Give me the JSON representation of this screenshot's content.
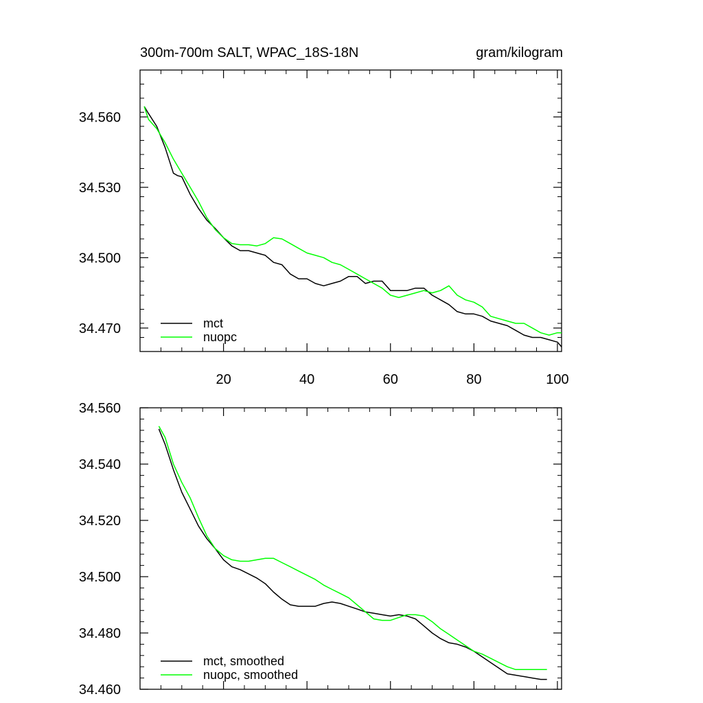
{
  "chart_data": [
    {
      "type": "line",
      "title": "300m-700m SALT, WPAC_18S-18N",
      "units": "gram/kilogram",
      "xlim": [
        0,
        101
      ],
      "ylim": [
        34.46,
        34.58
      ],
      "x_ticks": [
        20,
        40,
        60,
        80,
        100
      ],
      "y_ticks": [
        34.47,
        34.5,
        34.53,
        34.56
      ],
      "y_tick_labels": [
        "34.470",
        "34.500",
        "34.530",
        "34.560"
      ],
      "x_tick_labels": [
        "20",
        "40",
        "60",
        "80",
        "100"
      ],
      "legend": [
        "mct",
        "nuopc"
      ],
      "legend_position": "bottom-left",
      "series": [
        {
          "name": "mct",
          "color": "#000000",
          "x": [
            1,
            2,
            4,
            6,
            8,
            9,
            10,
            12,
            14,
            16,
            18,
            20,
            22,
            24,
            26,
            28,
            30,
            32,
            34,
            36,
            38,
            40,
            42,
            44,
            46,
            48,
            50,
            52,
            54,
            56,
            58,
            60,
            62,
            64,
            66,
            68,
            70,
            72,
            74,
            76,
            78,
            80,
            82,
            84,
            86,
            88,
            90,
            92,
            94,
            96,
            98,
            100,
            101
          ],
          "values": [
            34.5645,
            34.5615,
            34.556,
            34.547,
            34.536,
            34.535,
            34.5345,
            34.527,
            34.521,
            34.516,
            34.5125,
            34.5085,
            34.505,
            34.503,
            34.503,
            34.502,
            34.501,
            34.498,
            34.497,
            34.493,
            34.491,
            34.491,
            34.489,
            34.488,
            34.489,
            34.49,
            34.492,
            34.492,
            34.489,
            34.49,
            34.49,
            34.486,
            34.486,
            34.486,
            34.487,
            34.487,
            34.484,
            34.482,
            34.48,
            34.477,
            34.476,
            34.476,
            34.475,
            34.473,
            34.472,
            34.471,
            34.469,
            34.467,
            34.466,
            34.466,
            34.465,
            34.464,
            34.462
          ]
        },
        {
          "name": "nuopc",
          "color": "#00ff00",
          "x": [
            1,
            2,
            4,
            6,
            8,
            10,
            12,
            14,
            16,
            18,
            20,
            22,
            24,
            26,
            28,
            30,
            32,
            34,
            36,
            38,
            40,
            42,
            44,
            46,
            48,
            50,
            52,
            54,
            56,
            58,
            60,
            62,
            64,
            66,
            68,
            70,
            72,
            74,
            76,
            78,
            80,
            82,
            84,
            86,
            88,
            90,
            92,
            94,
            96,
            98,
            100,
            101
          ],
          "values": [
            34.5645,
            34.559,
            34.555,
            34.549,
            34.542,
            34.536,
            34.53,
            34.524,
            34.517,
            34.512,
            34.5085,
            34.506,
            34.5055,
            34.5055,
            34.505,
            34.506,
            34.5085,
            34.508,
            34.506,
            34.504,
            34.502,
            34.501,
            34.5,
            34.498,
            34.497,
            34.495,
            34.493,
            34.491,
            34.489,
            34.487,
            34.484,
            34.483,
            34.484,
            34.485,
            34.486,
            34.485,
            34.486,
            34.488,
            34.484,
            34.482,
            34.481,
            34.479,
            34.475,
            34.474,
            34.473,
            34.472,
            34.472,
            34.47,
            34.468,
            34.467,
            34.468,
            34.468
          ]
        }
      ]
    },
    {
      "type": "line",
      "xlim": [
        0,
        101
      ],
      "ylim": [
        34.46,
        34.56
      ],
      "x_ticks": [
        20,
        40,
        60,
        80,
        100
      ],
      "y_ticks": [
        34.46,
        34.48,
        34.5,
        34.52,
        34.54,
        34.56
      ],
      "y_tick_labels": [
        "34.460",
        "34.480",
        "34.500",
        "34.520",
        "34.540",
        "34.560"
      ],
      "legend": [
        "mct, smoothed",
        "nuopc, smoothed"
      ],
      "legend_position": "bottom-left",
      "series": [
        {
          "name": "mct, smoothed",
          "color": "#000000",
          "x": [
            4.5,
            6,
            8,
            10,
            12,
            14,
            16,
            18,
            20,
            22,
            24,
            26,
            28,
            30,
            32,
            34,
            36,
            38,
            40,
            42,
            44,
            46,
            48,
            50,
            52,
            54,
            56,
            58,
            60,
            62,
            64,
            66,
            68,
            70,
            72,
            74,
            76,
            78,
            80,
            82,
            84,
            86,
            88,
            90,
            92,
            94,
            96,
            97.5
          ],
          "values": [
            34.5525,
            34.547,
            34.538,
            34.53,
            34.524,
            34.518,
            34.5135,
            34.51,
            34.506,
            34.5035,
            34.5025,
            34.501,
            34.4995,
            34.4975,
            34.4945,
            34.492,
            34.49,
            34.4895,
            34.4895,
            34.4895,
            34.4905,
            34.491,
            34.4905,
            34.4895,
            34.4885,
            34.4875,
            34.487,
            34.4865,
            34.486,
            34.4865,
            34.486,
            34.485,
            34.4825,
            34.48,
            34.478,
            34.4765,
            34.476,
            34.475,
            34.4735,
            34.4715,
            34.4695,
            34.4675,
            34.4655,
            34.465,
            34.4645,
            34.464,
            34.4635,
            34.4635
          ]
        },
        {
          "name": "nuopc, smoothed",
          "color": "#00ff00",
          "x": [
            4.5,
            6,
            8,
            10,
            12,
            14,
            16,
            18,
            20,
            22,
            24,
            26,
            28,
            30,
            32,
            34,
            36,
            38,
            40,
            42,
            44,
            46,
            48,
            50,
            52,
            54,
            56,
            58,
            60,
            62,
            64,
            66,
            68,
            70,
            72,
            74,
            76,
            78,
            80,
            82,
            84,
            86,
            88,
            90,
            92,
            94,
            96,
            97.5
          ],
          "values": [
            34.5535,
            34.5495,
            34.54,
            34.5335,
            34.528,
            34.521,
            34.5145,
            34.51,
            34.5075,
            34.506,
            34.5055,
            34.5055,
            34.506,
            34.5065,
            34.5065,
            34.505,
            34.5035,
            34.502,
            34.5005,
            34.499,
            34.497,
            34.4955,
            34.494,
            34.4925,
            34.49,
            34.4875,
            34.485,
            34.4845,
            34.4845,
            34.4855,
            34.4865,
            34.4865,
            34.486,
            34.484,
            34.4815,
            34.4795,
            34.4775,
            34.4755,
            34.4735,
            34.4725,
            34.471,
            34.4695,
            34.468,
            34.467,
            34.467,
            34.467,
            34.467,
            34.467
          ]
        }
      ]
    }
  ]
}
